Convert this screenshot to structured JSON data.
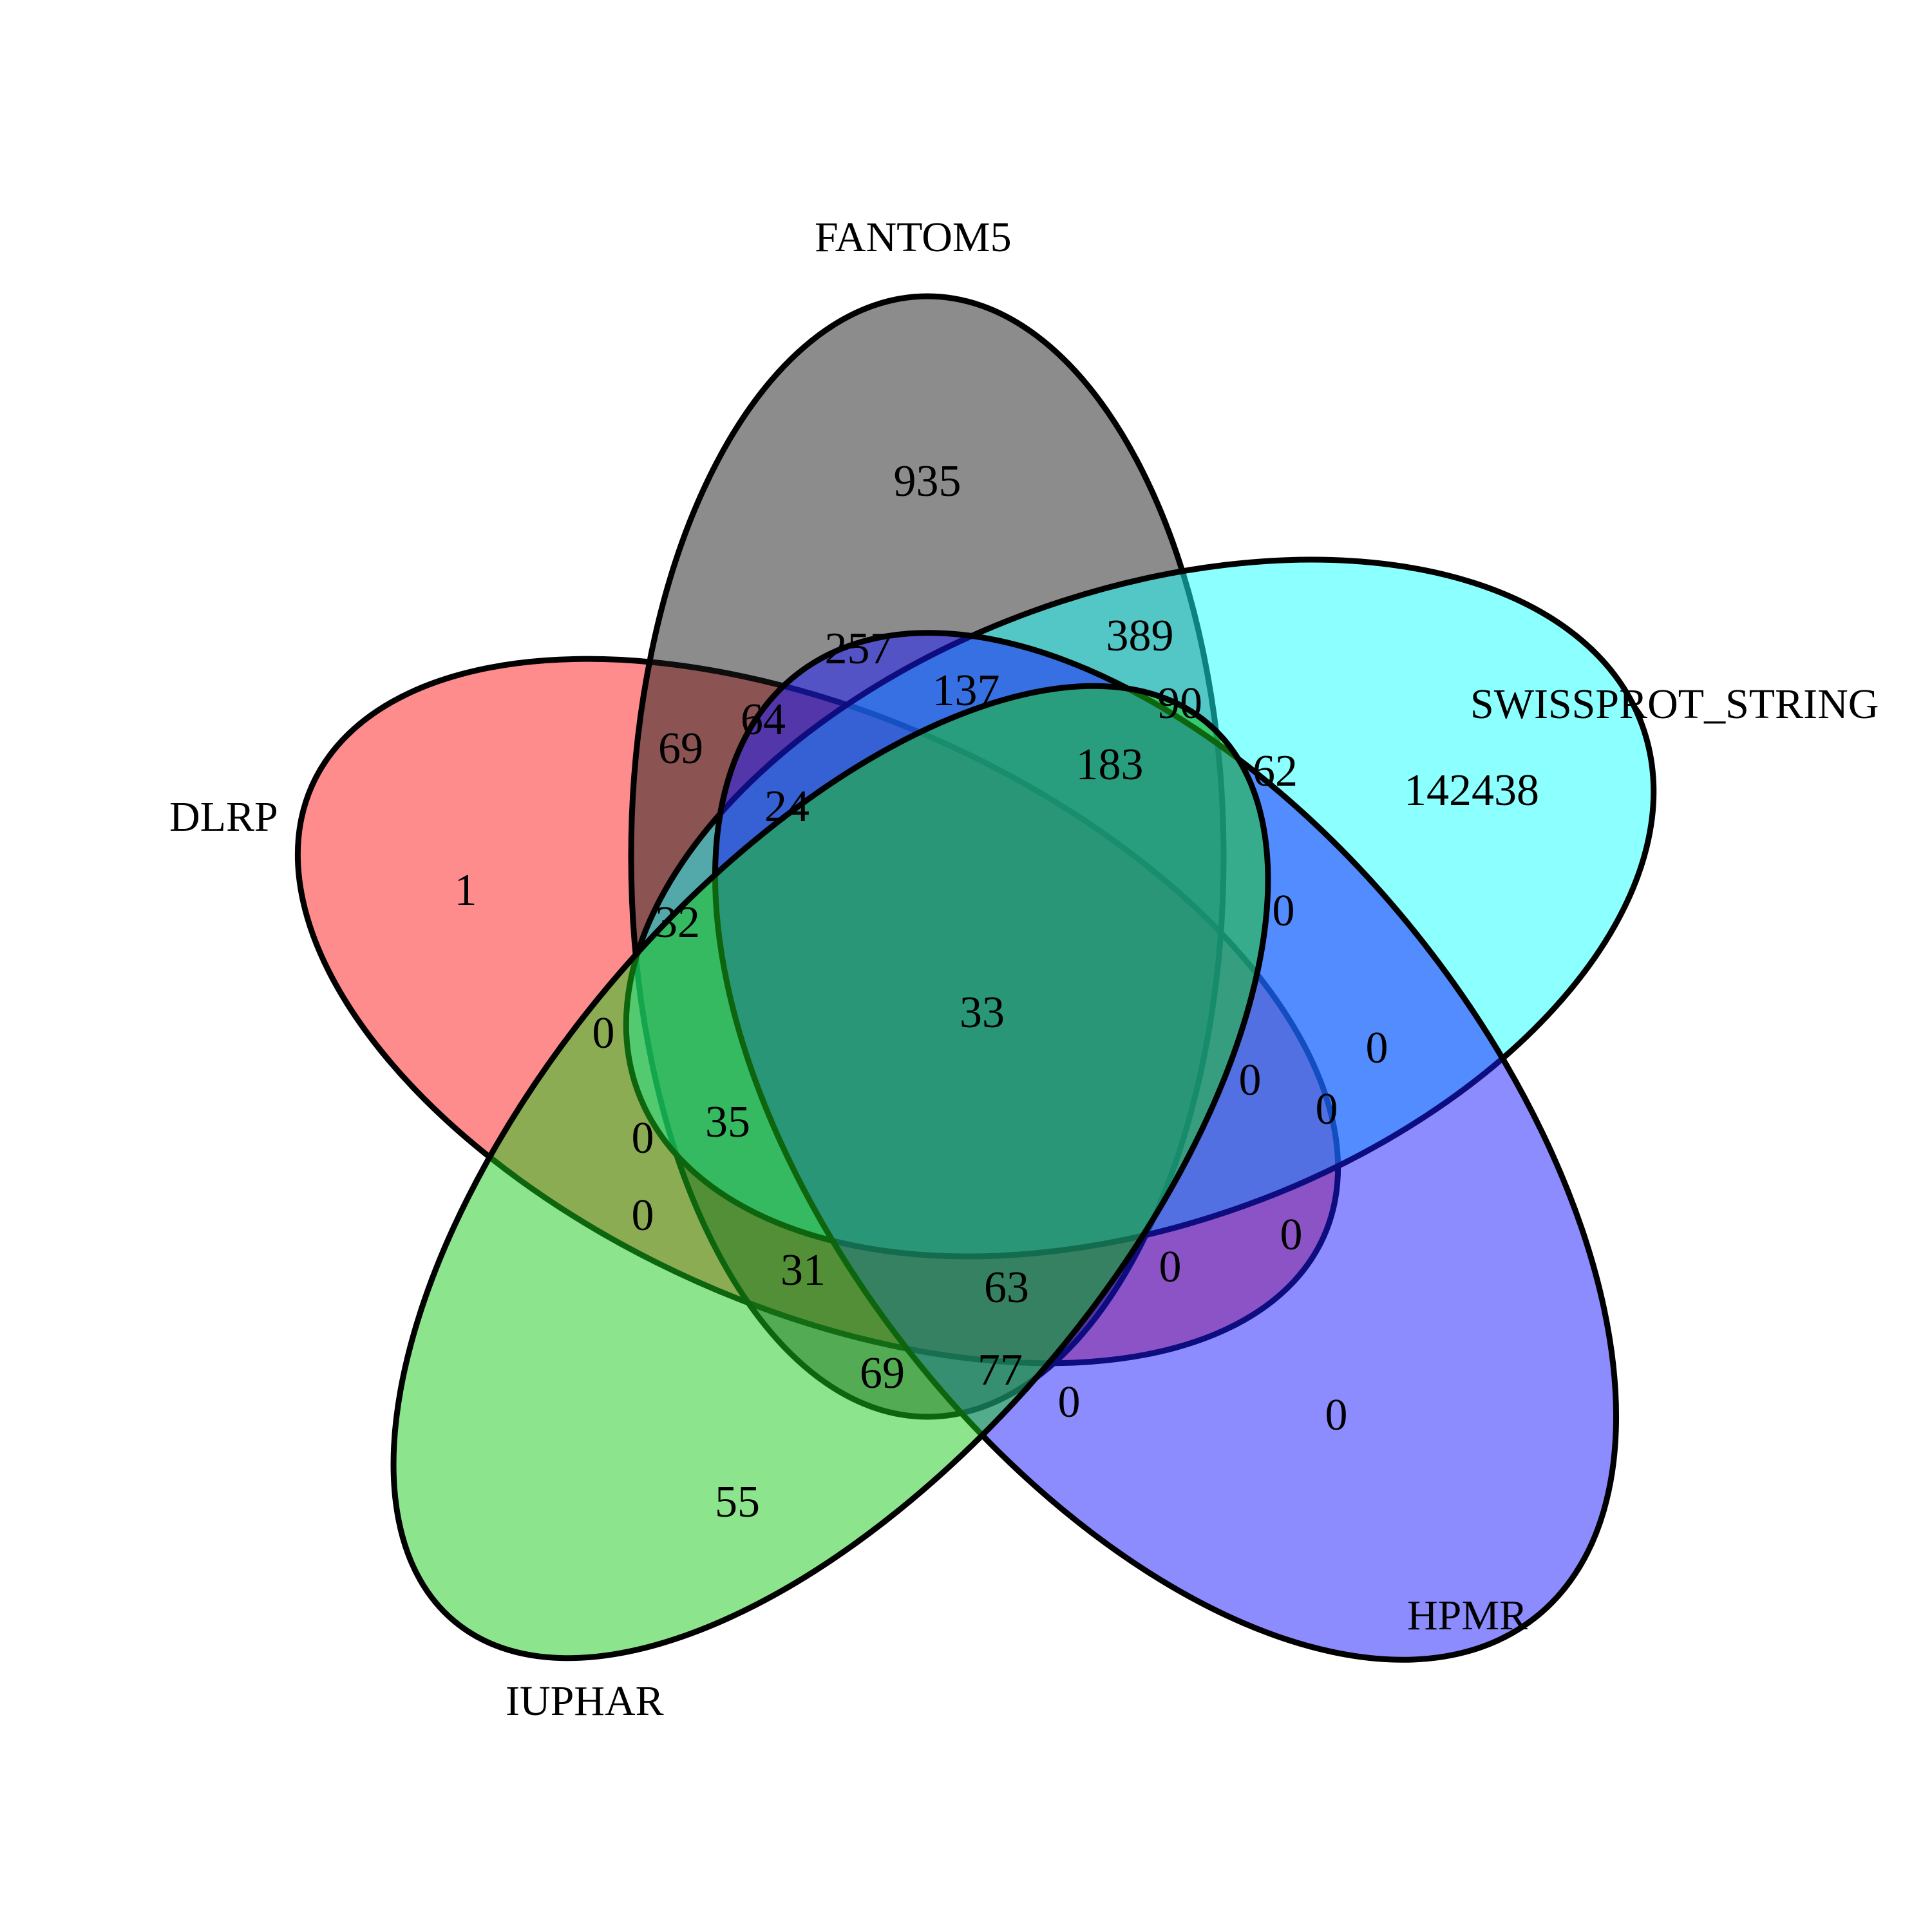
{
  "sets": [
    {
      "key": "dlrp",
      "name": "DLRP",
      "color": "#ff1a1a"
    },
    {
      "key": "fantom5",
      "name": "FANTOM5",
      "color": "#1a1a1a"
    },
    {
      "key": "swissprot_string",
      "name": "SWISSPROT_STRING",
      "color": "#1affff"
    },
    {
      "key": "hpmr",
      "name": "HPMR",
      "color": "#1a1aff"
    },
    {
      "key": "iuphar",
      "name": "IUPHAR",
      "color": "#1acc1a"
    }
  ],
  "region_counts": {
    "dlrp_only": "1",
    "fantom5_only": "935",
    "swissprot_string_only": "142438",
    "hpmr_only": "0",
    "iuphar_only": "55",
    "r_257": "257",
    "r_389": "389",
    "r_137": "137",
    "r_90": "90",
    "r_64": "64",
    "r_69_top": "69",
    "r_183": "183",
    "r_62": "62",
    "r_24": "24",
    "r_32": "32",
    "r_0_a": "0",
    "r_0_b": "0",
    "r_0_c": "0",
    "r_0_d": "0",
    "r_0_e": "0",
    "r_0_f": "0",
    "r_0_g": "0",
    "r_0_h": "0",
    "r_0_i": "0",
    "r_0_j": "0",
    "r_33_all": "33",
    "r_35": "35",
    "r_31": "31",
    "r_63": "63",
    "r_69_bottom": "69",
    "r_77": "77"
  }
}
